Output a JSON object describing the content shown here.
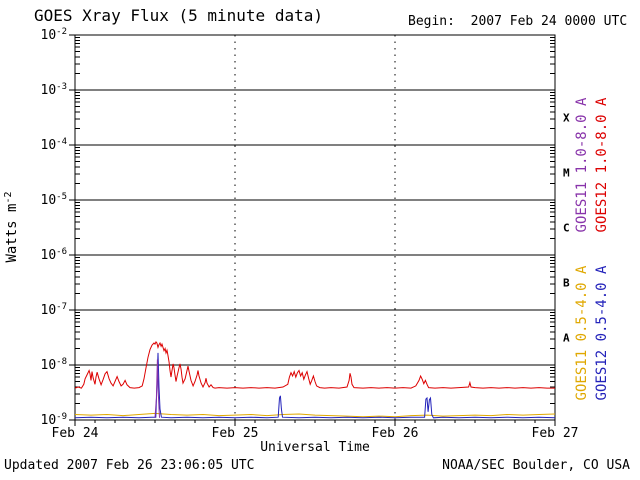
{
  "page": {
    "background": "#ffffff",
    "axis_color": "#000000"
  },
  "chart_data": {
    "type": "line",
    "title": "GOES Xray Flux (5 minute data)",
    "begin_label": "Begin:  2007 Feb 24 0000 UTC",
    "footer_left": "Updated 2007 Feb 26 23:06:05 UTC",
    "footer_right": "NOAA/SEC Boulder, CO USA",
    "xlabel": "Universal Time",
    "ylabel_base": "Watts m",
    "ylabel_exp": "-2",
    "y_axis_base": "10",
    "y_exponents": [
      -2,
      -3,
      -4,
      -5,
      -6,
      -7,
      -8,
      -9
    ],
    "y_log10_range": [
      -9,
      -2
    ],
    "x_range_days": [
      0,
      3
    ],
    "x_tick_labels": [
      "Feb 24",
      "Feb 25",
      "Feb 26",
      "Feb 27"
    ],
    "x_minor_ticks_per_day": 8,
    "day_gridlines": [
      1,
      2
    ],
    "flare_classes": [
      {
        "label": "X",
        "log_center": -3.5
      },
      {
        "label": "M",
        "log_center": -4.5
      },
      {
        "label": "C",
        "log_center": -5.5
      },
      {
        "label": "B",
        "log_center": -6.5
      },
      {
        "label": "A",
        "log_center": -7.5
      }
    ],
    "series": [
      {
        "name": "GOES11 1.0-8.0 A",
        "color": "#8833aa",
        "points": [
          [
            0.5,
            -8.96
          ],
          [
            0.509,
            -8.6
          ],
          [
            0.515,
            -7.9
          ],
          [
            0.521,
            -8.55
          ],
          [
            0.528,
            -8.96
          ]
        ]
      },
      {
        "name": "GOES12 1.0-8.0 A",
        "color": "#dd0000",
        "points": [
          [
            0.0,
            -8.42
          ],
          [
            0.02,
            -8.4
          ],
          [
            0.04,
            -8.42
          ],
          [
            0.055,
            -8.35
          ],
          [
            0.063,
            -8.25
          ],
          [
            0.075,
            -8.18
          ],
          [
            0.088,
            -8.1
          ],
          [
            0.094,
            -8.16
          ],
          [
            0.1,
            -8.28
          ],
          [
            0.106,
            -8.12
          ],
          [
            0.113,
            -8.23
          ],
          [
            0.125,
            -8.35
          ],
          [
            0.131,
            -8.22
          ],
          [
            0.138,
            -8.13
          ],
          [
            0.15,
            -8.25
          ],
          [
            0.163,
            -8.36
          ],
          [
            0.175,
            -8.27
          ],
          [
            0.188,
            -8.16
          ],
          [
            0.2,
            -8.12
          ],
          [
            0.213,
            -8.25
          ],
          [
            0.225,
            -8.33
          ],
          [
            0.238,
            -8.38
          ],
          [
            0.25,
            -8.3
          ],
          [
            0.263,
            -8.21
          ],
          [
            0.275,
            -8.3
          ],
          [
            0.288,
            -8.38
          ],
          [
            0.3,
            -8.35
          ],
          [
            0.313,
            -8.28
          ],
          [
            0.325,
            -8.36
          ],
          [
            0.344,
            -8.41
          ],
          [
            0.37,
            -8.42
          ],
          [
            0.4,
            -8.41
          ],
          [
            0.42,
            -8.38
          ],
          [
            0.431,
            -8.25
          ],
          [
            0.444,
            -8.05
          ],
          [
            0.456,
            -7.86
          ],
          [
            0.469,
            -7.72
          ],
          [
            0.481,
            -7.64
          ],
          [
            0.494,
            -7.6
          ],
          [
            0.5,
            -7.62
          ],
          [
            0.506,
            -7.58
          ],
          [
            0.512,
            -7.6
          ],
          [
            0.519,
            -7.68
          ],
          [
            0.525,
            -7.63
          ],
          [
            0.531,
            -7.6
          ],
          [
            0.538,
            -7.66
          ],
          [
            0.544,
            -7.62
          ],
          [
            0.55,
            -7.68
          ],
          [
            0.556,
            -7.74
          ],
          [
            0.563,
            -7.7
          ],
          [
            0.569,
            -7.78
          ],
          [
            0.575,
            -7.73
          ],
          [
            0.581,
            -7.83
          ],
          [
            0.588,
            -7.95
          ],
          [
            0.594,
            -8.1
          ],
          [
            0.6,
            -8.22
          ],
          [
            0.606,
            -8.1
          ],
          [
            0.613,
            -7.98
          ],
          [
            0.619,
            -8.05
          ],
          [
            0.625,
            -8.18
          ],
          [
            0.631,
            -8.3
          ],
          [
            0.638,
            -8.2
          ],
          [
            0.65,
            -8.05
          ],
          [
            0.656,
            -7.98
          ],
          [
            0.663,
            -8.08
          ],
          [
            0.669,
            -8.22
          ],
          [
            0.675,
            -8.33
          ],
          [
            0.688,
            -8.25
          ],
          [
            0.7,
            -8.1
          ],
          [
            0.706,
            -8.02
          ],
          [
            0.713,
            -8.12
          ],
          [
            0.725,
            -8.28
          ],
          [
            0.738,
            -8.38
          ],
          [
            0.75,
            -8.3
          ],
          [
            0.763,
            -8.18
          ],
          [
            0.769,
            -8.1
          ],
          [
            0.775,
            -8.2
          ],
          [
            0.788,
            -8.33
          ],
          [
            0.8,
            -8.4
          ],
          [
            0.813,
            -8.32
          ],
          [
            0.819,
            -8.24
          ],
          [
            0.825,
            -8.33
          ],
          [
            0.838,
            -8.4
          ],
          [
            0.85,
            -8.36
          ],
          [
            0.863,
            -8.41
          ],
          [
            0.875,
            -8.42
          ],
          [
            0.9,
            -8.41
          ],
          [
            0.95,
            -8.42
          ],
          [
            1.0,
            -8.41
          ],
          [
            1.05,
            -8.42
          ],
          [
            1.1,
            -8.41
          ],
          [
            1.15,
            -8.42
          ],
          [
            1.2,
            -8.41
          ],
          [
            1.25,
            -8.42
          ],
          [
            1.3,
            -8.4
          ],
          [
            1.33,
            -8.35
          ],
          [
            1.34,
            -8.22
          ],
          [
            1.35,
            -8.14
          ],
          [
            1.36,
            -8.2
          ],
          [
            1.37,
            -8.12
          ],
          [
            1.38,
            -8.22
          ],
          [
            1.39,
            -8.14
          ],
          [
            1.4,
            -8.1
          ],
          [
            1.41,
            -8.2
          ],
          [
            1.42,
            -8.14
          ],
          [
            1.43,
            -8.26
          ],
          [
            1.44,
            -8.18
          ],
          [
            1.45,
            -8.12
          ],
          [
            1.46,
            -8.24
          ],
          [
            1.47,
            -8.35
          ],
          [
            1.48,
            -8.28
          ],
          [
            1.49,
            -8.2
          ],
          [
            1.5,
            -8.3
          ],
          [
            1.51,
            -8.38
          ],
          [
            1.53,
            -8.41
          ],
          [
            1.56,
            -8.42
          ],
          [
            1.6,
            -8.41
          ],
          [
            1.65,
            -8.42
          ],
          [
            1.7,
            -8.4
          ],
          [
            1.713,
            -8.28
          ],
          [
            1.719,
            -8.15
          ],
          [
            1.725,
            -8.22
          ],
          [
            1.731,
            -8.35
          ],
          [
            1.744,
            -8.41
          ],
          [
            1.8,
            -8.42
          ],
          [
            1.85,
            -8.41
          ],
          [
            1.9,
            -8.42
          ],
          [
            1.95,
            -8.41
          ],
          [
            2.0,
            -8.42
          ],
          [
            2.05,
            -8.41
          ],
          [
            2.1,
            -8.42
          ],
          [
            2.13,
            -8.38
          ],
          [
            2.15,
            -8.28
          ],
          [
            2.16,
            -8.2
          ],
          [
            2.17,
            -8.26
          ],
          [
            2.18,
            -8.34
          ],
          [
            2.19,
            -8.28
          ],
          [
            2.2,
            -8.35
          ],
          [
            2.21,
            -8.41
          ],
          [
            2.25,
            -8.42
          ],
          [
            2.3,
            -8.41
          ],
          [
            2.35,
            -8.42
          ],
          [
            2.4,
            -8.41
          ],
          [
            2.46,
            -8.4
          ],
          [
            2.468,
            -8.32
          ],
          [
            2.475,
            -8.4
          ],
          [
            2.5,
            -8.41
          ],
          [
            2.55,
            -8.42
          ],
          [
            2.6,
            -8.41
          ],
          [
            2.65,
            -8.42
          ],
          [
            2.7,
            -8.41
          ],
          [
            2.75,
            -8.42
          ],
          [
            2.8,
            -8.41
          ],
          [
            2.85,
            -8.42
          ],
          [
            2.9,
            -8.41
          ],
          [
            2.95,
            -8.42
          ],
          [
            3.0,
            -8.42
          ]
        ]
      },
      {
        "name": "GOES11 0.5-4.0 A",
        "color": "#e0a800",
        "points": [
          [
            0.0,
            -8.9
          ],
          [
            0.1,
            -8.91
          ],
          [
            0.2,
            -8.9
          ],
          [
            0.3,
            -8.92
          ],
          [
            0.4,
            -8.9
          ],
          [
            0.5,
            -8.88
          ],
          [
            0.6,
            -8.9
          ],
          [
            0.7,
            -8.91
          ],
          [
            0.8,
            -8.9
          ],
          [
            0.9,
            -8.92
          ],
          [
            1.0,
            -8.91
          ],
          [
            1.1,
            -8.9
          ],
          [
            1.2,
            -8.92
          ],
          [
            1.3,
            -8.9
          ],
          [
            1.4,
            -8.89
          ],
          [
            1.5,
            -8.91
          ],
          [
            1.6,
            -8.92
          ],
          [
            1.7,
            -8.93
          ],
          [
            1.8,
            -8.94
          ],
          [
            1.9,
            -8.93
          ],
          [
            2.0,
            -8.94
          ],
          [
            2.1,
            -8.92
          ],
          [
            2.2,
            -8.91
          ],
          [
            2.3,
            -8.93
          ],
          [
            2.4,
            -8.92
          ],
          [
            2.5,
            -8.91
          ],
          [
            2.6,
            -8.92
          ],
          [
            2.7,
            -8.9
          ],
          [
            2.8,
            -8.91
          ],
          [
            2.9,
            -8.9
          ],
          [
            3.0,
            -8.89
          ]
        ]
      },
      {
        "name": "GOES12 0.5-4.0 A",
        "color": "#2222bb",
        "points": [
          [
            0.0,
            -8.96
          ],
          [
            0.1,
            -8.95
          ],
          [
            0.2,
            -8.96
          ],
          [
            0.3,
            -8.95
          ],
          [
            0.4,
            -8.96
          ],
          [
            0.48,
            -8.95
          ],
          [
            0.505,
            -8.95
          ],
          [
            0.513,
            -8.3
          ],
          [
            0.519,
            -7.78
          ],
          [
            0.525,
            -8.4
          ],
          [
            0.531,
            -8.8
          ],
          [
            0.54,
            -8.95
          ],
          [
            0.6,
            -8.96
          ],
          [
            0.7,
            -8.95
          ],
          [
            0.8,
            -8.96
          ],
          [
            0.9,
            -8.95
          ],
          [
            1.0,
            -8.96
          ],
          [
            1.1,
            -8.95
          ],
          [
            1.2,
            -8.96
          ],
          [
            1.27,
            -8.95
          ],
          [
            1.278,
            -8.6
          ],
          [
            1.284,
            -8.56
          ],
          [
            1.29,
            -8.8
          ],
          [
            1.297,
            -8.95
          ],
          [
            1.4,
            -8.96
          ],
          [
            1.5,
            -8.95
          ],
          [
            1.6,
            -8.96
          ],
          [
            1.7,
            -8.95
          ],
          [
            1.8,
            -8.96
          ],
          [
            1.9,
            -8.95
          ],
          [
            2.0,
            -8.96
          ],
          [
            2.1,
            -8.95
          ],
          [
            2.185,
            -8.95
          ],
          [
            2.193,
            -8.62
          ],
          [
            2.2,
            -8.6
          ],
          [
            2.207,
            -8.85
          ],
          [
            2.215,
            -8.63
          ],
          [
            2.222,
            -8.6
          ],
          [
            2.23,
            -8.9
          ],
          [
            2.24,
            -8.96
          ],
          [
            2.3,
            -8.95
          ],
          [
            2.4,
            -8.96
          ],
          [
            2.5,
            -8.95
          ],
          [
            2.6,
            -8.96
          ],
          [
            2.7,
            -8.95
          ],
          [
            2.8,
            -8.96
          ],
          [
            2.9,
            -8.95
          ],
          [
            3.0,
            -8.96
          ]
        ]
      }
    ]
  }
}
